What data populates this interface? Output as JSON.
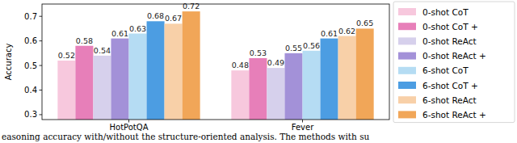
{
  "chart_data": {
    "type": "bar",
    "categories": [
      "HotPotQA",
      "Fever"
    ],
    "y_label": "Accuracy",
    "annotations": [
      "easoning accuracy with/without the structure-oriented analysis. The methods with su"
    ],
    "series": [
      {
        "name": "0-shot CoT",
        "color": "#f7c8dd",
        "values": [
          0.52,
          0.48
        ]
      },
      {
        "name": "0-shot CoT +",
        "color": "#e77fb9",
        "values": [
          0.58,
          0.53
        ]
      },
      {
        "name": "0-shot ReAct",
        "color": "#d6d0ec",
        "values": [
          0.54,
          0.49
        ]
      },
      {
        "name": "0-shot ReAct +",
        "color": "#a391d8",
        "values": [
          0.61,
          0.55
        ]
      },
      {
        "name": "6-shot CoT",
        "color": "#b5dcf3",
        "values": [
          0.63,
          0.56
        ]
      },
      {
        "name": "6-shot CoT +",
        "color": "#4c9de2",
        "values": [
          0.68,
          0.61
        ]
      },
      {
        "name": "6-shot ReAct",
        "color": "#f8d0a8",
        "values": [
          0.67,
          0.62
        ]
      },
      {
        "name": "6-shot ReAct +",
        "color": "#f1a658",
        "values": [
          0.72,
          0.65
        ]
      }
    ],
    "ylim": [
      0.28,
      0.75
    ],
    "yticks": [
      0.3,
      0.4,
      0.5,
      0.6,
      0.7
    ],
    "grid": false,
    "legend": "right",
    "data_labels": true
  }
}
